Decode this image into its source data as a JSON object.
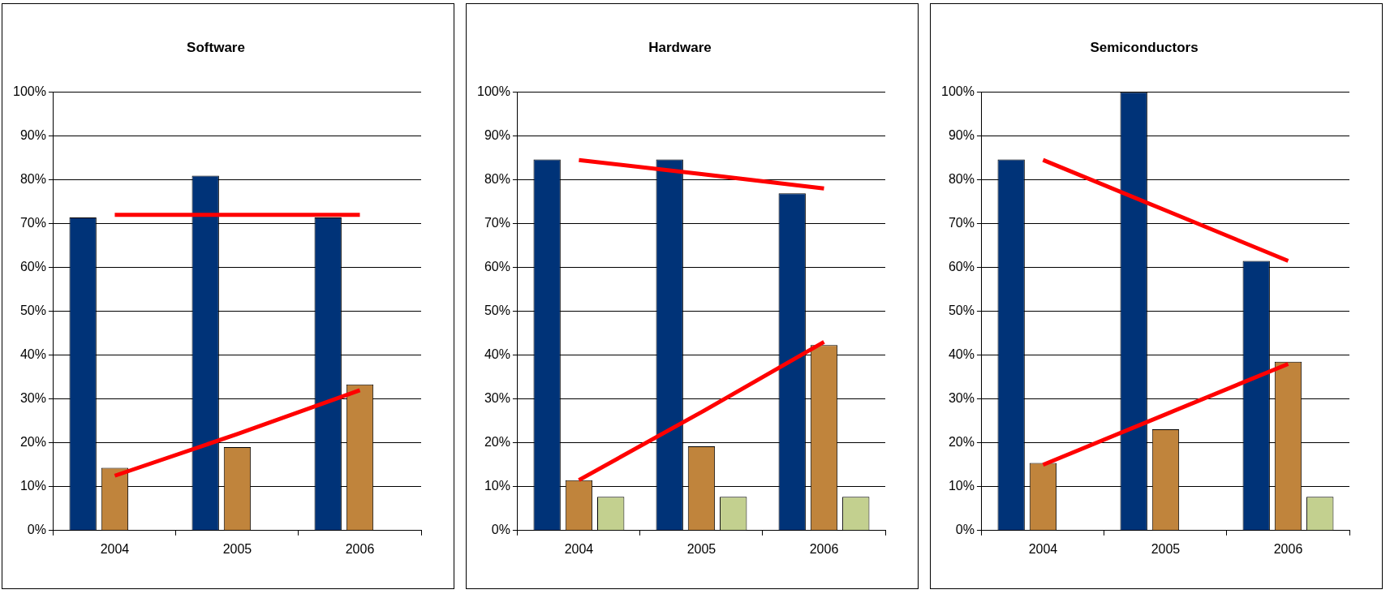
{
  "chart_data": [
    {
      "type": "bar",
      "title": "Software",
      "categories": [
        "2004",
        "2005",
        "2006"
      ],
      "series": [
        {
          "color": "#003378",
          "values": [
            71.4,
            80.9,
            71.4
          ]
        },
        {
          "color": "#c0843c",
          "values": [
            14.3,
            19.0,
            33.3
          ]
        },
        {
          "color": "#c3d08f",
          "values": [
            null,
            null,
            null
          ]
        },
        {
          "type": "line",
          "color": "#ff0000",
          "values": [
            72,
            72,
            72
          ]
        },
        {
          "type": "line",
          "color": "#ff0000",
          "values": [
            12.5,
            22,
            32
          ]
        }
      ],
      "ylim": [
        0,
        100
      ],
      "yticks": [
        {
          "value": 0,
          "label": "0%"
        },
        {
          "value": 10,
          "label": "10%"
        },
        {
          "value": 20,
          "label": "20%"
        },
        {
          "value": 30,
          "label": "30%"
        },
        {
          "value": 40,
          "label": "40%"
        },
        {
          "value": 50,
          "label": "50%"
        },
        {
          "value": 60,
          "label": "60%"
        },
        {
          "value": 70,
          "label": "70%"
        },
        {
          "value": 80,
          "label": "80%"
        },
        {
          "value": 90,
          "label": "90%"
        },
        {
          "value": 100,
          "label": "100%"
        }
      ],
      "grid": "y",
      "legend": false,
      "marker": "none",
      "line_style": "solid"
    },
    {
      "type": "bar",
      "title": "Hardware",
      "categories": [
        "2004",
        "2005",
        "2006"
      ],
      "series": [
        {
          "color": "#003378",
          "values": [
            84.6,
            84.6,
            76.9
          ]
        },
        {
          "color": "#c0843c",
          "values": [
            11.5,
            19.2,
            42.3
          ]
        },
        {
          "color": "#c3d08f",
          "values": [
            7.7,
            7.7,
            7.7
          ]
        },
        {
          "type": "line",
          "color": "#ff0000",
          "values": [
            84.5,
            81.3,
            78
          ]
        },
        {
          "type": "line",
          "color": "#ff0000",
          "values": [
            11.5,
            27,
            43
          ]
        }
      ],
      "ylim": [
        0,
        100
      ],
      "yticks": [
        {
          "value": 0,
          "label": "0%"
        },
        {
          "value": 10,
          "label": "10%"
        },
        {
          "value": 20,
          "label": "20%"
        },
        {
          "value": 30,
          "label": "30%"
        },
        {
          "value": 40,
          "label": "40%"
        },
        {
          "value": 50,
          "label": "50%"
        },
        {
          "value": 60,
          "label": "60%"
        },
        {
          "value": 70,
          "label": "70%"
        },
        {
          "value": 80,
          "label": "80%"
        },
        {
          "value": 90,
          "label": "90%"
        },
        {
          "value": 100,
          "label": "100%"
        }
      ],
      "grid": "y",
      "legend": false,
      "marker": "none",
      "line_style": "solid"
    },
    {
      "type": "bar",
      "title": "Semiconductors",
      "categories": [
        "2004",
        "2005",
        "2006"
      ],
      "series": [
        {
          "color": "#003378",
          "values": [
            84.6,
            100,
            61.5
          ]
        },
        {
          "color": "#c0843c",
          "values": [
            15.4,
            23.1,
            38.5
          ]
        },
        {
          "color": "#c3d08f",
          "values": [
            null,
            null,
            7.7
          ]
        },
        {
          "type": "line",
          "color": "#ff0000",
          "values": [
            84.5,
            73,
            61.5
          ]
        },
        {
          "type": "line",
          "color": "#ff0000",
          "values": [
            15,
            26.5,
            38
          ]
        }
      ],
      "ylim": [
        0,
        100
      ],
      "yticks": [
        {
          "value": 0,
          "label": "0%"
        },
        {
          "value": 10,
          "label": "10%"
        },
        {
          "value": 20,
          "label": "20%"
        },
        {
          "value": 30,
          "label": "30%"
        },
        {
          "value": 40,
          "label": "40%"
        },
        {
          "value": 50,
          "label": "50%"
        },
        {
          "value": 60,
          "label": "60%"
        },
        {
          "value": 70,
          "label": "70%"
        },
        {
          "value": 80,
          "label": "80%"
        },
        {
          "value": 90,
          "label": "90%"
        },
        {
          "value": 100,
          "label": "100%"
        }
      ],
      "grid": "y",
      "legend": false,
      "marker": "none",
      "line_style": "solid"
    }
  ]
}
